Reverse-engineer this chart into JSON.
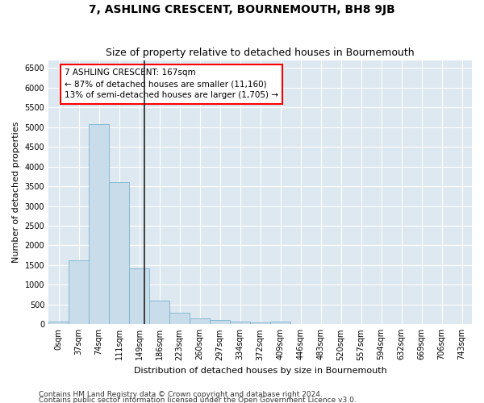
{
  "title": "7, ASHLING CRESCENT, BOURNEMOUTH, BH8 9JB",
  "subtitle": "Size of property relative to detached houses in Bournemouth",
  "xlabel": "Distribution of detached houses by size in Bournemouth",
  "ylabel": "Number of detached properties",
  "footnote1": "Contains HM Land Registry data © Crown copyright and database right 2024.",
  "footnote2": "Contains public sector information licensed under the Open Government Licence v3.0.",
  "annotation_line1": "7 ASHLING CRESCENT: 167sqm",
  "annotation_line2": "← 87% of detached houses are smaller (11,160)",
  "annotation_line3": "13% of semi-detached houses are larger (1,705) →",
  "bar_color": "#c9dcea",
  "bar_edge_color": "#7ab3d0",
  "vline_color": "#222222",
  "categories": [
    "0sqm",
    "37sqm",
    "74sqm",
    "111sqm",
    "149sqm",
    "186sqm",
    "223sqm",
    "260sqm",
    "297sqm",
    "334sqm",
    "372sqm",
    "409sqm",
    "446sqm",
    "483sqm",
    "520sqm",
    "557sqm",
    "594sqm",
    "632sqm",
    "669sqm",
    "706sqm",
    "743sqm"
  ],
  "values": [
    70,
    1630,
    5080,
    3600,
    1410,
    590,
    290,
    145,
    105,
    75,
    50,
    70,
    0,
    0,
    0,
    0,
    0,
    0,
    0,
    0,
    0
  ],
  "vline_position": 4.27,
  "ylim": [
    0,
    6700
  ],
  "yticks": [
    0,
    500,
    1000,
    1500,
    2000,
    2500,
    3000,
    3500,
    4000,
    4500,
    5000,
    5500,
    6000,
    6500
  ],
  "background_color": "#ffffff",
  "plot_bg_color": "#dde8f0",
  "title_fontsize": 10,
  "subtitle_fontsize": 9,
  "annotation_fontsize": 7.5,
  "axis_label_fontsize": 8,
  "tick_fontsize": 7,
  "footnote_fontsize": 6.5
}
